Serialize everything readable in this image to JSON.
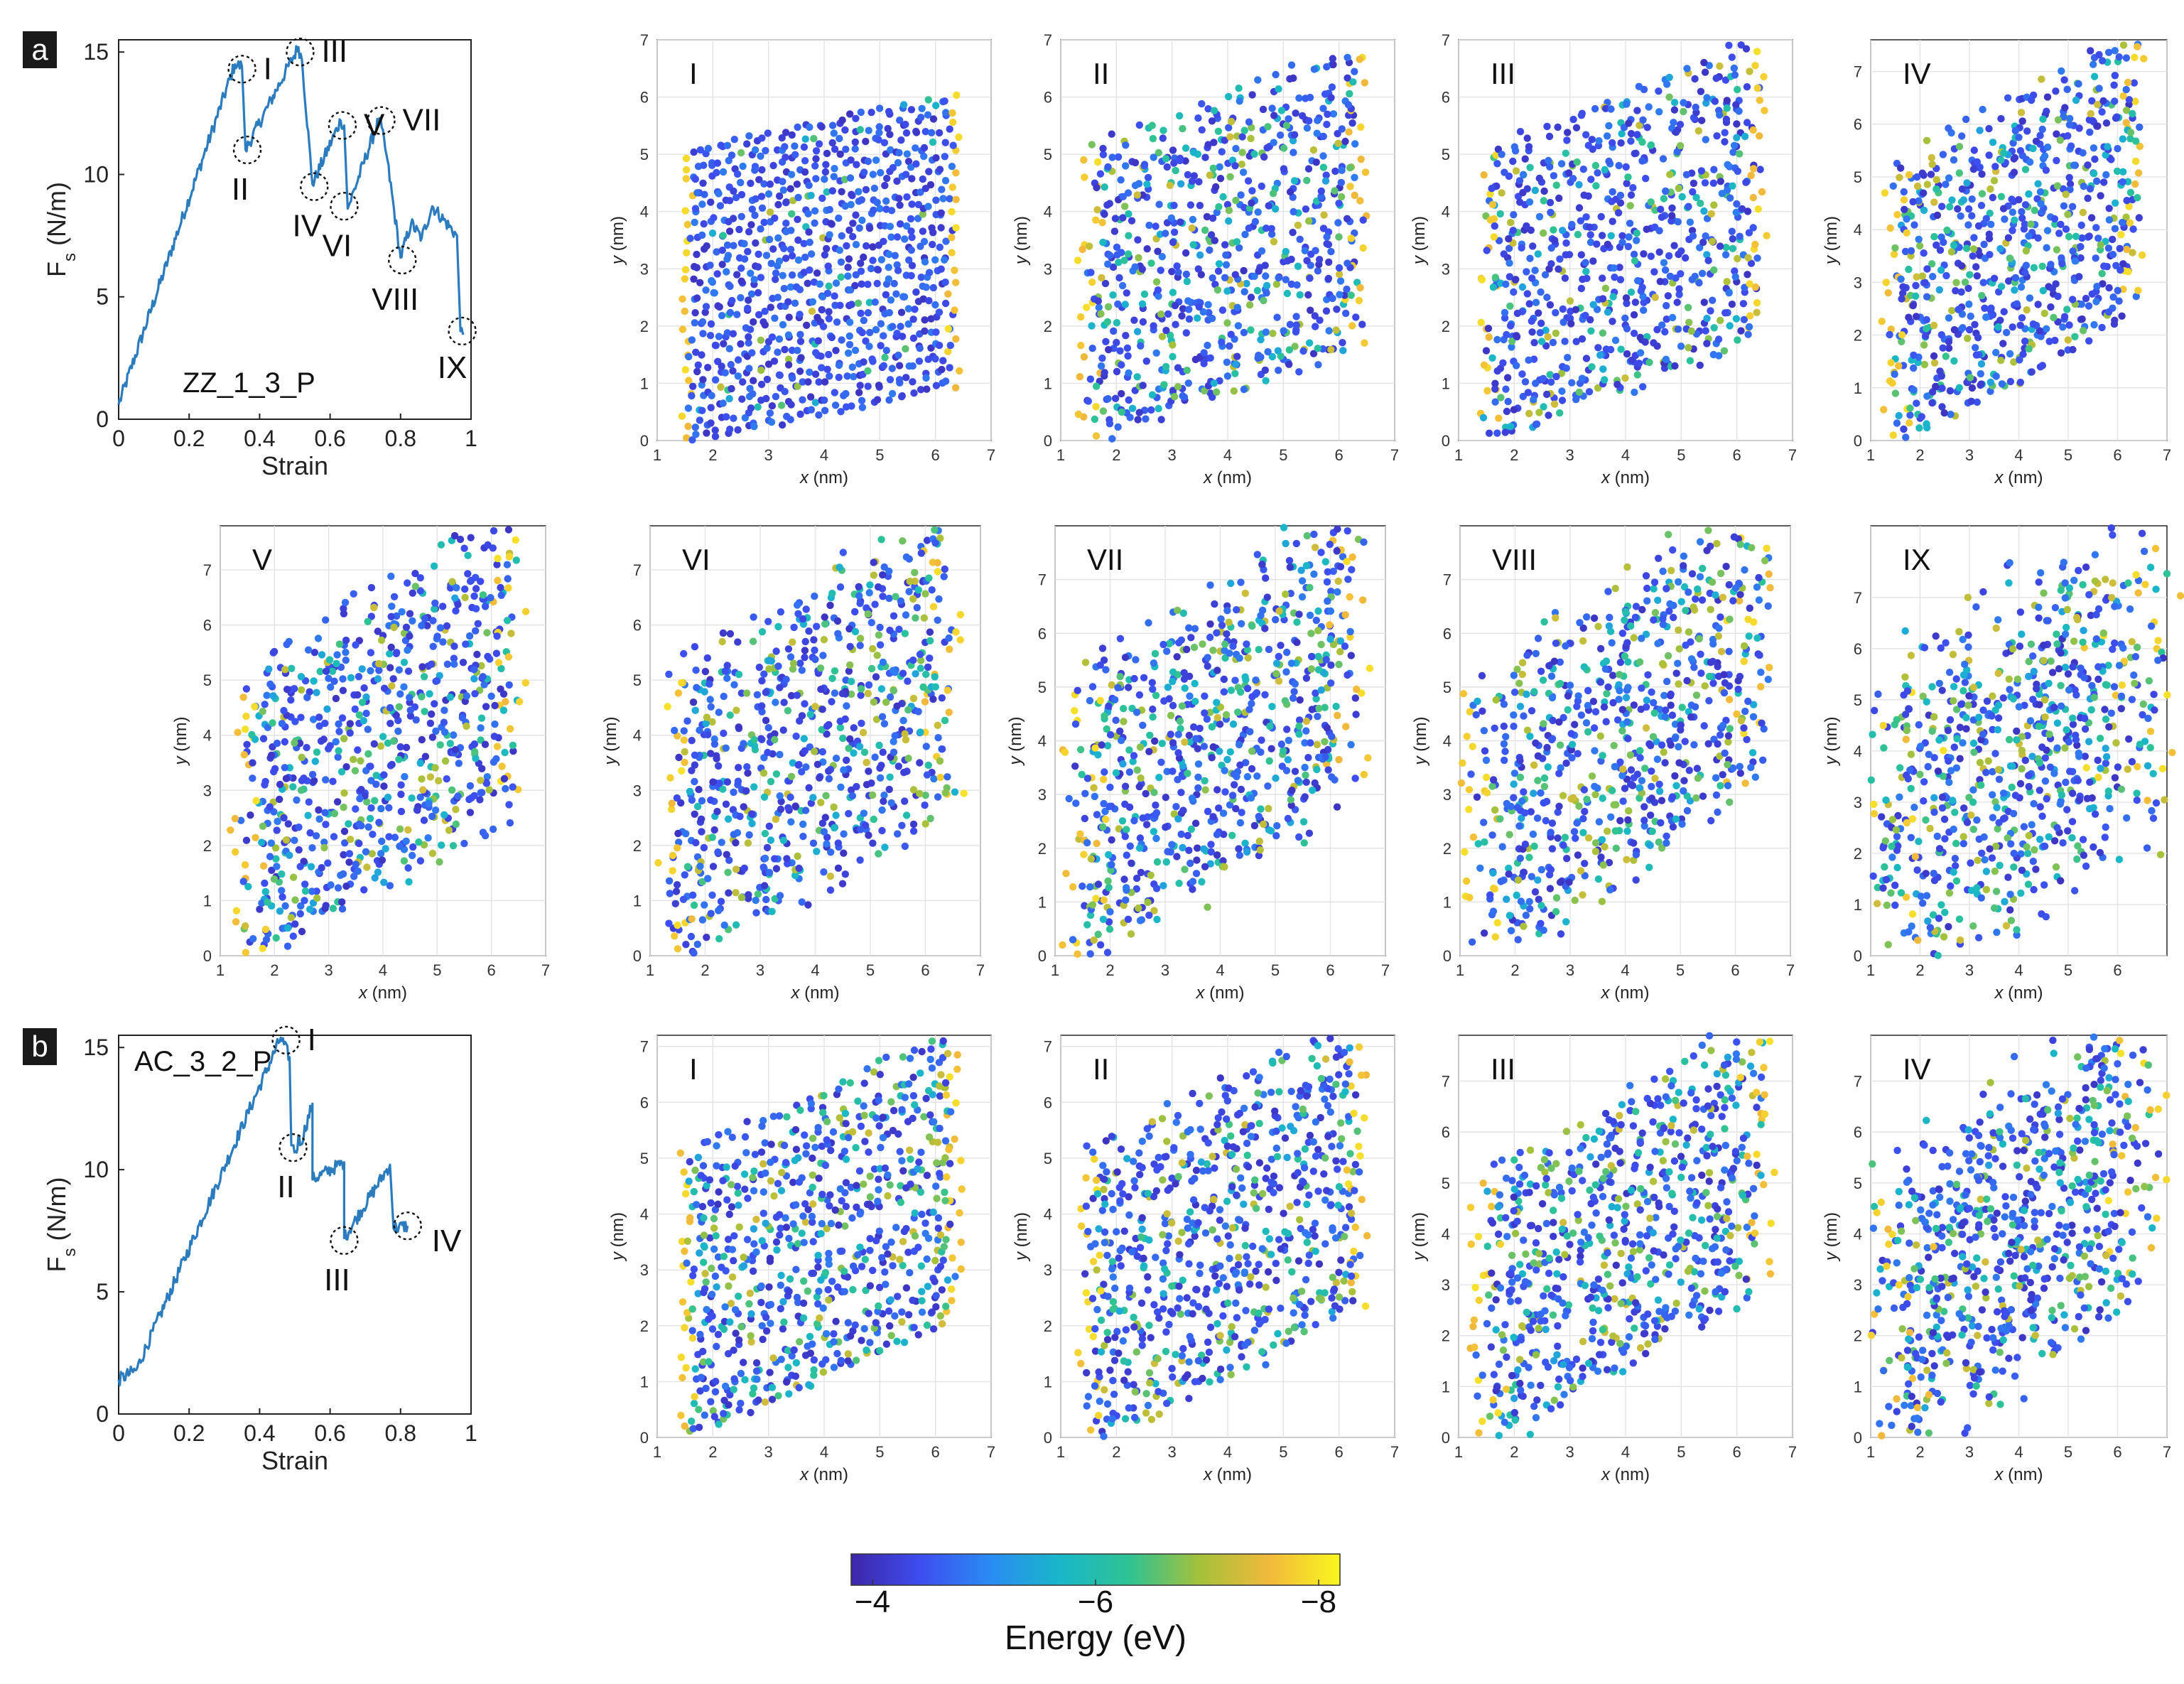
{
  "figure": {
    "panel_labels": [
      "a",
      "b"
    ],
    "colorbar": {
      "label": "Energy (eV)",
      "ticks": [
        "−4",
        "−6",
        "−8"
      ],
      "colors": [
        "#3d26a8",
        "#3d4ef0",
        "#2a8cf3",
        "#19b7c9",
        "#2fc392",
        "#a6c13a",
        "#f2b93b",
        "#f9f71f"
      ]
    }
  },
  "chart_data": [
    {
      "type": "line",
      "id": "a",
      "annotation": "ZZ_1_3_P",
      "xlabel": "Strain",
      "ylabel": "F_s (N/m)",
      "xlim": [
        0,
        1
      ],
      "ylim": [
        0,
        15.5
      ],
      "xticks": [
        "0",
        "0.2",
        "0.4",
        "0.6",
        "0.8",
        "1"
      ],
      "yticks": [
        "0",
        "5",
        "10",
        "15"
      ],
      "color": "#2b7bbf",
      "x": [
        0,
        0.33,
        0.35,
        0.36,
        0.51,
        0.52,
        0.55,
        0.63,
        0.64,
        0.65,
        0.74,
        0.76,
        0.8,
        0.83,
        0.86,
        0.89,
        0.96,
        0.97,
        0.98
      ],
      "y": [
        0.6,
        14.5,
        14.4,
        11.0,
        15.2,
        14.7,
        9.6,
        12.2,
        12.0,
        8.6,
        12.3,
        10.8,
        6.6,
        8.0,
        7.4,
        8.7,
        7.5,
        3.6,
        3.5
      ],
      "markers": [
        {
          "label": "I",
          "x": 0.35,
          "y": 14.3
        },
        {
          "label": "II",
          "x": 0.365,
          "y": 11.0
        },
        {
          "label": "III",
          "x": 0.515,
          "y": 15.0
        },
        {
          "label": "IV",
          "x": 0.555,
          "y": 9.5
        },
        {
          "label": "V",
          "x": 0.635,
          "y": 12.0
        },
        {
          "label": "VI",
          "x": 0.64,
          "y": 8.7
        },
        {
          "label": "VII",
          "x": 0.745,
          "y": 12.2
        },
        {
          "label": "VIII",
          "x": 0.805,
          "y": 6.5
        },
        {
          "label": "IX",
          "x": 0.975,
          "y": 3.6
        }
      ]
    },
    {
      "type": "line",
      "id": "b",
      "annotation": "AC_3_2_P",
      "xlabel": "Strain",
      "ylabel": "F_s (N/m)",
      "xlim": [
        0,
        1
      ],
      "ylim": [
        0,
        15.5
      ],
      "xticks": [
        "0",
        "0.2",
        "0.4",
        "0.6",
        "0.8",
        "1"
      ],
      "yticks": [
        "0",
        "5",
        "10",
        "15"
      ],
      "color": "#2b7bbf",
      "x": [
        0,
        0.05,
        0.46,
        0.485,
        0.49,
        0.505,
        0.51,
        0.515,
        0.55,
        0.55,
        0.64,
        0.64,
        0.77,
        0.78,
        0.82
      ],
      "y": [
        1.4,
        1.8,
        15.4,
        14.6,
        11.0,
        10.7,
        11.4,
        11.0,
        12.7,
        9.6,
        10.3,
        7.2,
        10.2,
        7.6,
        7.7
      ],
      "markers": [
        {
          "label": "I",
          "x": 0.475,
          "y": 15.3
        },
        {
          "label": "II",
          "x": 0.495,
          "y": 10.9
        },
        {
          "label": "III",
          "x": 0.64,
          "y": 7.1
        },
        {
          "label": "IV",
          "x": 0.82,
          "y": 7.7
        }
      ]
    },
    {
      "type": "scatter",
      "id": "a-I",
      "label": "I",
      "xlabel": "x (nm)",
      "ylabel": "y (nm)",
      "xlim": [
        1,
        7
      ],
      "ylim": [
        0,
        7
      ],
      "xticks": [
        "1",
        "2",
        "3",
        "4",
        "5",
        "6",
        "7"
      ],
      "yticks": [
        "0",
        "1",
        "2",
        "3",
        "4",
        "5",
        "6",
        "7"
      ],
      "shear": 1.0,
      "rows": 5,
      "disorder": 0.02,
      "energy_mix": 0.05
    },
    {
      "type": "scatter",
      "id": "a-II",
      "label": "II",
      "xlabel": "x (nm)",
      "ylabel": "y (nm)",
      "xlim": [
        1,
        7
      ],
      "ylim": [
        0,
        7
      ],
      "xticks": [
        "1",
        "2",
        "3",
        "4",
        "5",
        "6",
        "7"
      ],
      "yticks": [
        "0",
        "1",
        "2",
        "3",
        "4",
        "5",
        "6",
        "7"
      ],
      "shear": 1.8,
      "rows": 4,
      "disorder": 0.05,
      "energy_mix": 0.25
    },
    {
      "type": "scatter",
      "id": "a-III",
      "label": "III",
      "xlabel": "x (nm)",
      "ylabel": "y (nm)",
      "xlim": [
        1,
        7
      ],
      "ylim": [
        0,
        7
      ],
      "xticks": [
        "1",
        "2",
        "3",
        "4",
        "5",
        "6",
        "7"
      ],
      "yticks": [
        "0",
        "1",
        "2",
        "3",
        "4",
        "5",
        "6",
        "7"
      ],
      "shear": 1.9,
      "rows": 4,
      "disorder": 0.05,
      "energy_mix": 0.25
    },
    {
      "type": "scatter",
      "id": "a-IV",
      "label": "IV",
      "xlabel": "x (nm)",
      "ylabel": "y (nm)",
      "xlim": [
        1,
        7
      ],
      "ylim": [
        0,
        7.6
      ],
      "xticks": [
        "1",
        "2",
        "3",
        "4",
        "5",
        "6",
        "7"
      ],
      "yticks": [
        "0",
        "1",
        "2",
        "3",
        "4",
        "5",
        "6",
        "7"
      ],
      "shear": 2.6,
      "rows": 4,
      "disorder": 0.07,
      "energy_mix": 0.3
    },
    {
      "type": "scatter",
      "id": "a-V",
      "label": "V",
      "xlabel": "x (nm)",
      "ylabel": "y (nm)",
      "xlim": [
        1,
        7
      ],
      "ylim": [
        0,
        7.8
      ],
      "xticks": [
        "1",
        "2",
        "3",
        "4",
        "5",
        "6",
        "7"
      ],
      "yticks": [
        "0",
        "1",
        "2",
        "3",
        "4",
        "5",
        "6",
        "7"
      ],
      "shear": 2.8,
      "rows": 4,
      "disorder": 0.08,
      "energy_mix": 0.3
    },
    {
      "type": "scatter",
      "id": "a-VI",
      "label": "VI",
      "xlabel": "x (nm)",
      "ylabel": "y (nm)",
      "xlim": [
        1,
        7
      ],
      "ylim": [
        0,
        7.8
      ],
      "xticks": [
        "1",
        "2",
        "3",
        "4",
        "5",
        "6",
        "7"
      ],
      "yticks": [
        "0",
        "1",
        "2",
        "3",
        "4",
        "5",
        "6",
        "7"
      ],
      "shear": 2.9,
      "rows": 4,
      "disorder": 0.09,
      "energy_mix": 0.32
    },
    {
      "type": "scatter",
      "id": "a-VII",
      "label": "VII",
      "xlabel": "x (nm)",
      "ylabel": "y (nm)",
      "xlim": [
        1,
        7
      ],
      "ylim": [
        0,
        8
      ],
      "xticks": [
        "1",
        "2",
        "3",
        "4",
        "5",
        "6",
        "7"
      ],
      "yticks": [
        "0",
        "1",
        "2",
        "3",
        "4",
        "5",
        "6",
        "7"
      ],
      "shear": 3.2,
      "rows": 4,
      "disorder": 0.1,
      "energy_mix": 0.35
    },
    {
      "type": "scatter",
      "id": "a-VIII",
      "label": "VIII",
      "xlabel": "x (nm)",
      "ylabel": "y (nm)",
      "xlim": [
        1,
        7
      ],
      "ylim": [
        0,
        8
      ],
      "xticks": [
        "1",
        "2",
        "3",
        "4",
        "5",
        "6",
        "7"
      ],
      "yticks": [
        "0",
        "1",
        "2",
        "3",
        "4",
        "5",
        "6",
        "7"
      ],
      "shear": 3.4,
      "rows": 4,
      "disorder": 0.12,
      "energy_mix": 0.35
    },
    {
      "type": "scatter",
      "id": "a-IX",
      "label": "IX",
      "xlabel": "x (nm)",
      "ylabel": "y (nm)",
      "xlim": [
        1,
        7
      ],
      "ylim": [
        0,
        8.4
      ],
      "xticks": [
        "1",
        "2",
        "3",
        "4",
        "5",
        "6"
      ],
      "yticks": [
        "0",
        "1",
        "2",
        "3",
        "4",
        "5",
        "6",
        "7"
      ],
      "shear": 3.0,
      "rows": 4,
      "disorder": 0.25,
      "energy_mix": 0.4
    },
    {
      "type": "scatter",
      "id": "b-I",
      "label": "I",
      "xlabel": "x (nm)",
      "ylabel": "y (nm)",
      "xlim": [
        1,
        7
      ],
      "ylim": [
        0,
        7.2
      ],
      "xticks": [
        "1",
        "2",
        "3",
        "4",
        "5",
        "6",
        "7"
      ],
      "yticks": [
        "0",
        "1",
        "2",
        "3",
        "4",
        "5",
        "6",
        "7"
      ],
      "shear": 2.2,
      "rows": 4,
      "disorder": 0.03,
      "energy_mix": 0.35
    },
    {
      "type": "scatter",
      "id": "b-II",
      "label": "II",
      "xlabel": "x (nm)",
      "ylabel": "y (nm)",
      "xlim": [
        1,
        7
      ],
      "ylim": [
        0,
        7.2
      ],
      "xticks": [
        "1",
        "2",
        "3",
        "4",
        "5",
        "6",
        "7"
      ],
      "yticks": [
        "0",
        "1",
        "2",
        "3",
        "4",
        "5",
        "6",
        "7"
      ],
      "shear": 2.4,
      "rows": 4,
      "disorder": 0.05,
      "energy_mix": 0.3
    },
    {
      "type": "scatter",
      "id": "b-III",
      "label": "III",
      "xlabel": "x (nm)",
      "ylabel": "y (nm)",
      "xlim": [
        1,
        7
      ],
      "ylim": [
        0,
        7.9
      ],
      "xticks": [
        "1",
        "2",
        "3",
        "4",
        "5",
        "6",
        "7"
      ],
      "yticks": [
        "0",
        "1",
        "2",
        "3",
        "4",
        "5",
        "6",
        "7"
      ],
      "shear": 3.0,
      "rows": 4,
      "disorder": 0.08,
      "energy_mix": 0.35
    },
    {
      "type": "scatter",
      "id": "b-IV",
      "label": "IV",
      "xlabel": "x (nm)",
      "ylabel": "y (nm)",
      "xlim": [
        1,
        7
      ],
      "ylim": [
        0,
        7.9
      ],
      "xticks": [
        "1",
        "2",
        "3",
        "4",
        "5",
        "6",
        "7"
      ],
      "yticks": [
        "0",
        "1",
        "2",
        "3",
        "4",
        "5",
        "6",
        "7"
      ],
      "shear": 3.2,
      "rows": 4,
      "disorder": 0.18,
      "energy_mix": 0.35
    }
  ]
}
